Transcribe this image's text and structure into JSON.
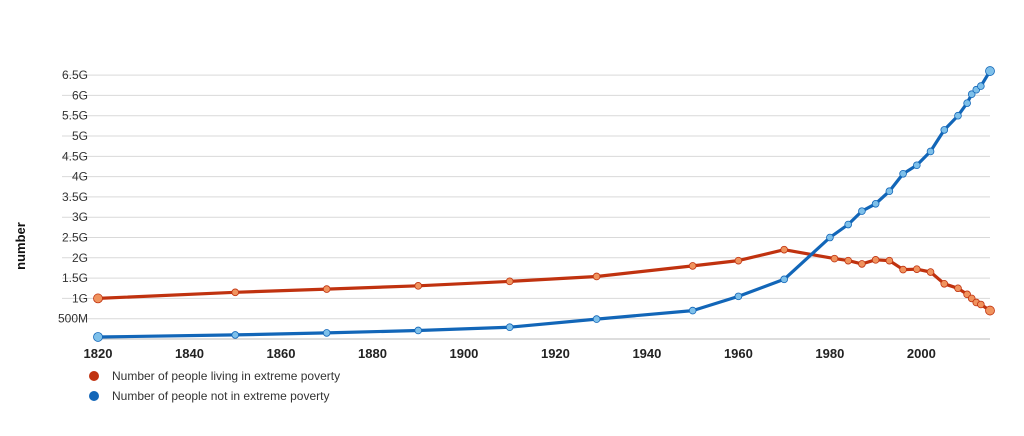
{
  "chart_data": {
    "type": "line",
    "title": "",
    "xlabel": "",
    "ylabel": "number",
    "xlim": [
      1820,
      2015
    ],
    "ylim": [
      0,
      6700000000
    ],
    "grid": true,
    "legend_position": "bottom-left",
    "x_ticks": [
      1820,
      1840,
      1860,
      1880,
      1900,
      1920,
      1940,
      1960,
      1980,
      2000
    ],
    "x_tick_labels": [
      "1820",
      "1840",
      "1860",
      "1880",
      "1900",
      "1920",
      "1940",
      "1960",
      "1980",
      "2000"
    ],
    "y_ticks": [
      500000000,
      1000000000,
      1500000000,
      2000000000,
      2500000000,
      3000000000,
      3500000000,
      4000000000,
      4500000000,
      5000000000,
      5500000000,
      6000000000,
      6500000000
    ],
    "y_tick_labels": [
      "500M",
      "1G",
      "1.5G",
      "2G",
      "2.5G",
      "3G",
      "3.5G",
      "4G",
      "4.5G",
      "5G",
      "5.5G",
      "6G",
      "6.5G"
    ],
    "series": [
      {
        "name": "Number of people living in extreme poverty",
        "color": "#c0320f",
        "marker_color": "#f0935e",
        "x": [
          1820,
          1850,
          1870,
          1890,
          1910,
          1929,
          1950,
          1960,
          1970,
          1981,
          1984,
          1987,
          1990,
          1993,
          1996,
          1999,
          2002,
          2005,
          2008,
          2010,
          2011,
          2012,
          2013,
          2015
        ],
        "y": [
          1000000000,
          1150000000,
          1230000000,
          1310000000,
          1420000000,
          1540000000,
          1800000000,
          1930000000,
          2200000000,
          1980000000,
          1930000000,
          1850000000,
          1950000000,
          1930000000,
          1710000000,
          1720000000,
          1650000000,
          1360000000,
          1250000000,
          1100000000,
          1000000000,
          900000000,
          850000000,
          700000000
        ]
      },
      {
        "name": "Number of people not in extreme poverty",
        "color": "#1266b8",
        "marker_color": "#7ec0ea",
        "x": [
          1820,
          1850,
          1870,
          1890,
          1910,
          1929,
          1950,
          1960,
          1970,
          1980,
          1984,
          1987,
          1990,
          1993,
          1996,
          1999,
          2002,
          2005,
          2008,
          2010,
          2011,
          2012,
          2013,
          2015
        ],
        "y": [
          50000000,
          100000000,
          150000000,
          210000000,
          290000000,
          490000000,
          700000000,
          1050000000,
          1470000000,
          2500000000,
          2820000000,
          3150000000,
          3330000000,
          3640000000,
          4070000000,
          4280000000,
          4620000000,
          5150000000,
          5500000000,
          5810000000,
          6030000000,
          6140000000,
          6230000000,
          6600000000
        ]
      }
    ]
  }
}
